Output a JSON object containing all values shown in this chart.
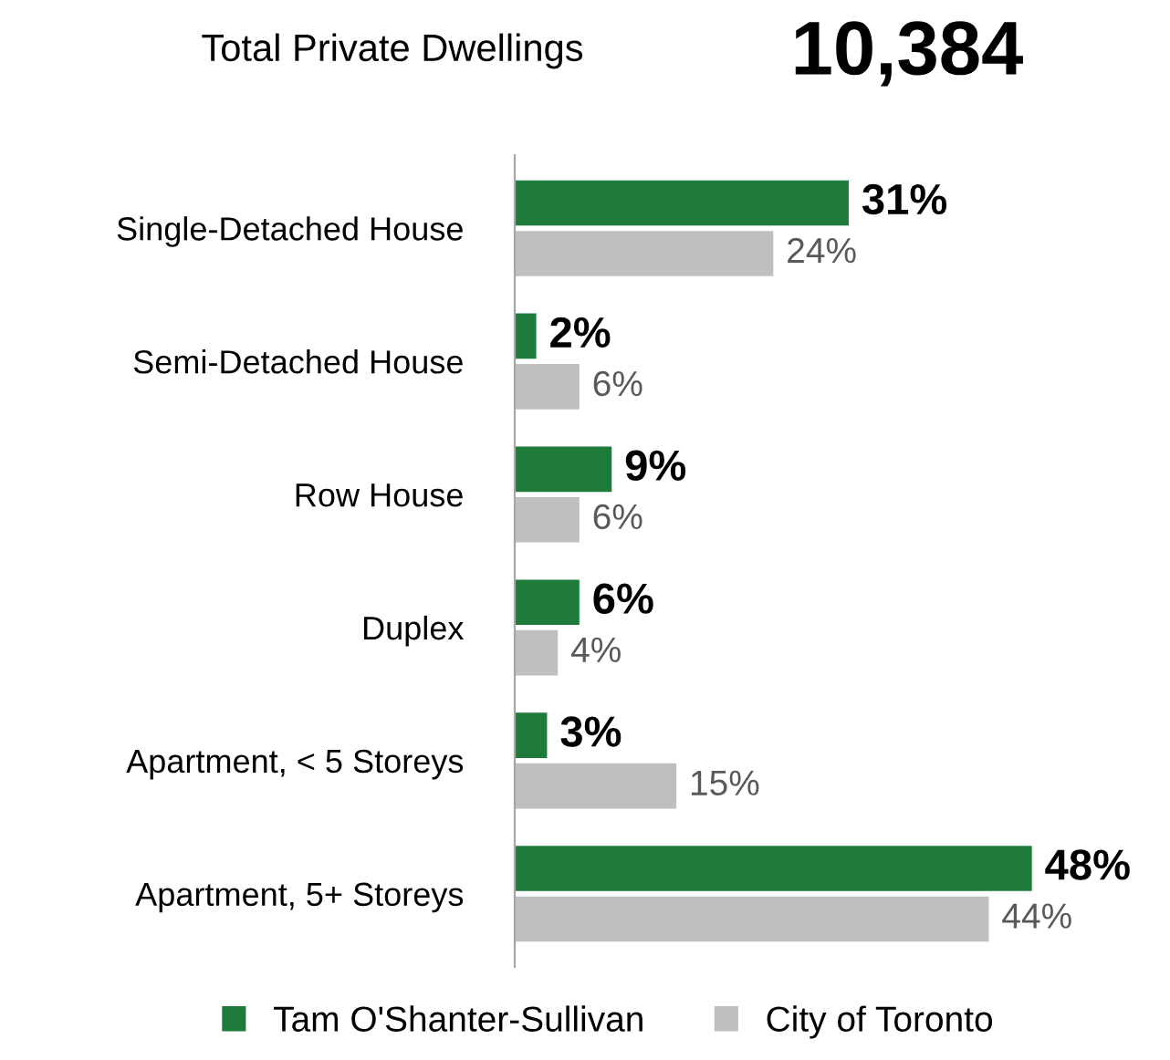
{
  "chart_data": {
    "type": "bar",
    "orientation": "horizontal",
    "title": "Total Private Dwellings",
    "subtitle": "10,384",
    "categories": [
      "Single-Detached House",
      "Semi-Detached House",
      "Row House",
      "Duplex",
      "Apartment, < 5 Storeys",
      "Apartment, 5+ Storeys"
    ],
    "series": [
      {
        "name": "Tam O'Shanter-Sullivan",
        "color": "#1e7b3a",
        "values": [
          31,
          2,
          9,
          6,
          3,
          48
        ],
        "value_labels": [
          "31%",
          "2%",
          "9%",
          "6%",
          "3%",
          "48%"
        ]
      },
      {
        "name": "City of Toronto",
        "color": "#bfbfbf",
        "values": [
          24,
          6,
          6,
          4,
          15,
          44
        ],
        "value_labels": [
          "24%",
          "6%",
          "6%",
          "4%",
          "15%",
          "44%"
        ]
      }
    ],
    "legend": "bottom",
    "grid": false
  }
}
